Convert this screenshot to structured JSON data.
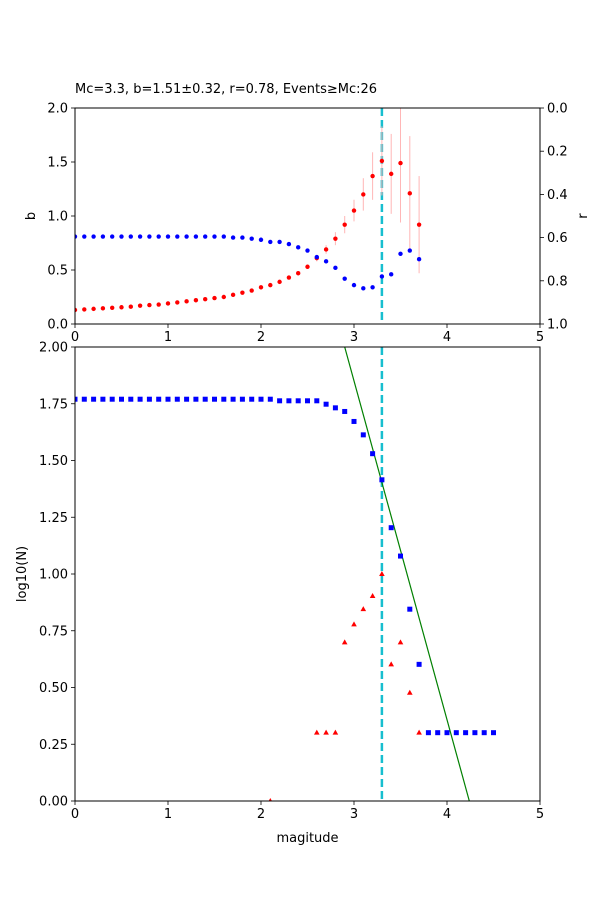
{
  "title": "Mc=3.3, b=1.51±0.32, r=0.78, Events≥Mc:26",
  "colors": {
    "b": "#ff0000",
    "r": "#0000ff",
    "err": "#ffb6b6",
    "mc_line": "#17becf",
    "fit": "#008000"
  },
  "chart_data": [
    {
      "type": "scatter",
      "panel": "top",
      "ylabel": "b",
      "y2label": "r",
      "xlim": [
        0,
        5
      ],
      "ylim": [
        0,
        2
      ],
      "y2lim": [
        1,
        0
      ],
      "xticks": [
        "0",
        "1",
        "2",
        "3",
        "4",
        "5"
      ],
      "yticks": [
        "0.0",
        "0.5",
        "1.0",
        "1.5",
        "2.0"
      ],
      "y2ticks": [
        "0.0",
        "0.2",
        "0.4",
        "0.6",
        "0.8",
        "1.0"
      ],
      "mc": 3.3,
      "series": [
        {
          "key": "b",
          "x": [
            0.0,
            0.1,
            0.2,
            0.3,
            0.4,
            0.5,
            0.6,
            0.7,
            0.8,
            0.9,
            1.0,
            1.1,
            1.2,
            1.3,
            1.4,
            1.5,
            1.6,
            1.7,
            1.8,
            1.9,
            2.0,
            2.1,
            2.2,
            2.3,
            2.4,
            2.5,
            2.6,
            2.7,
            2.8,
            2.9,
            3.0,
            3.1,
            3.2,
            3.3,
            3.4,
            3.5,
            3.6,
            3.7
          ],
          "y": [
            0.13,
            0.135,
            0.14,
            0.145,
            0.15,
            0.155,
            0.16,
            0.17,
            0.175,
            0.18,
            0.19,
            0.2,
            0.21,
            0.22,
            0.23,
            0.24,
            0.25,
            0.27,
            0.29,
            0.31,
            0.34,
            0.36,
            0.39,
            0.43,
            0.47,
            0.53,
            0.61,
            0.69,
            0.79,
            0.92,
            1.05,
            1.2,
            1.37,
            1.51,
            1.39,
            1.49,
            1.21,
            0.92
          ],
          "err": [
            0,
            0,
            0,
            0,
            0,
            0,
            0,
            0,
            0,
            0,
            0,
            0,
            0,
            0,
            0,
            0,
            0,
            0,
            0,
            0,
            0,
            0,
            0,
            0,
            0.01,
            0.02,
            0.03,
            0.04,
            0.06,
            0.08,
            0.1,
            0.15,
            0.22,
            0.32,
            0.37,
            0.55,
            0.53,
            0.45
          ]
        },
        {
          "key": "r",
          "x": [
            0.0,
            0.1,
            0.2,
            0.3,
            0.4,
            0.5,
            0.6,
            0.7,
            0.8,
            0.9,
            1.0,
            1.1,
            1.2,
            1.3,
            1.4,
            1.5,
            1.6,
            1.7,
            1.8,
            1.9,
            2.0,
            2.1,
            2.2,
            2.3,
            2.4,
            2.5,
            2.6,
            2.7,
            2.8,
            2.9,
            3.0,
            3.1,
            3.2,
            3.3,
            3.4,
            3.5,
            3.6,
            3.7
          ],
          "y": [
            0.595,
            0.595,
            0.595,
            0.595,
            0.595,
            0.595,
            0.595,
            0.595,
            0.595,
            0.595,
            0.595,
            0.595,
            0.595,
            0.595,
            0.595,
            0.595,
            0.595,
            0.6,
            0.6,
            0.605,
            0.61,
            0.62,
            0.62,
            0.63,
            0.645,
            0.66,
            0.69,
            0.71,
            0.74,
            0.79,
            0.82,
            0.835,
            0.83,
            0.78,
            0.77,
            0.675,
            0.66,
            0.7
          ]
        }
      ]
    },
    {
      "type": "scatter",
      "panel": "bottom",
      "xlabel": "magitude",
      "ylabel": "log10(N)",
      "xlim": [
        0,
        5
      ],
      "ylim": [
        0,
        2
      ],
      "xticks": [
        "0",
        "1",
        "2",
        "3",
        "4",
        "5"
      ],
      "yticks": [
        "0.00",
        "0.25",
        "0.50",
        "0.75",
        "1.00",
        "1.25",
        "1.50",
        "1.75",
        "2.00"
      ],
      "mc": 3.3,
      "fit_line": {
        "x": [
          2.9,
          4.24
        ],
        "y": [
          2.0,
          0.0
        ]
      },
      "series": [
        {
          "key": "cumulative",
          "marker": "square",
          "x": [
            0.0,
            0.1,
            0.2,
            0.3,
            0.4,
            0.5,
            0.6,
            0.7,
            0.8,
            0.9,
            1.0,
            1.1,
            1.2,
            1.3,
            1.4,
            1.5,
            1.6,
            1.7,
            1.8,
            1.9,
            2.0,
            2.1,
            2.2,
            2.3,
            2.4,
            2.5,
            2.6,
            2.7,
            2.8,
            2.9,
            3.0,
            3.1,
            3.2,
            3.3,
            3.4,
            3.5,
            3.6,
            3.7,
            3.8,
            3.9,
            4.0,
            4.1,
            4.2,
            4.3,
            4.4,
            4.5
          ],
          "y": [
            1.77,
            1.77,
            1.77,
            1.77,
            1.77,
            1.77,
            1.77,
            1.77,
            1.77,
            1.77,
            1.77,
            1.77,
            1.77,
            1.77,
            1.77,
            1.77,
            1.77,
            1.77,
            1.77,
            1.77,
            1.77,
            1.77,
            1.763,
            1.763,
            1.763,
            1.763,
            1.763,
            1.748,
            1.732,
            1.716,
            1.672,
            1.613,
            1.53,
            1.415,
            1.204,
            1.079,
            0.845,
            0.602,
            0.301,
            0.301,
            0.301,
            0.301,
            0.301,
            0.301,
            0.301,
            0.301
          ]
        },
        {
          "key": "incremental",
          "marker": "triangle",
          "x": [
            2.1,
            2.6,
            2.7,
            2.8,
            2.9,
            3.0,
            3.1,
            3.2,
            3.3,
            3.4,
            3.5,
            3.6,
            3.7
          ],
          "y": [
            0.0,
            0.301,
            0.301,
            0.301,
            0.699,
            0.778,
            0.845,
            0.903,
            1.0,
            0.602,
            0.699,
            0.477,
            0.301
          ]
        }
      ]
    }
  ]
}
